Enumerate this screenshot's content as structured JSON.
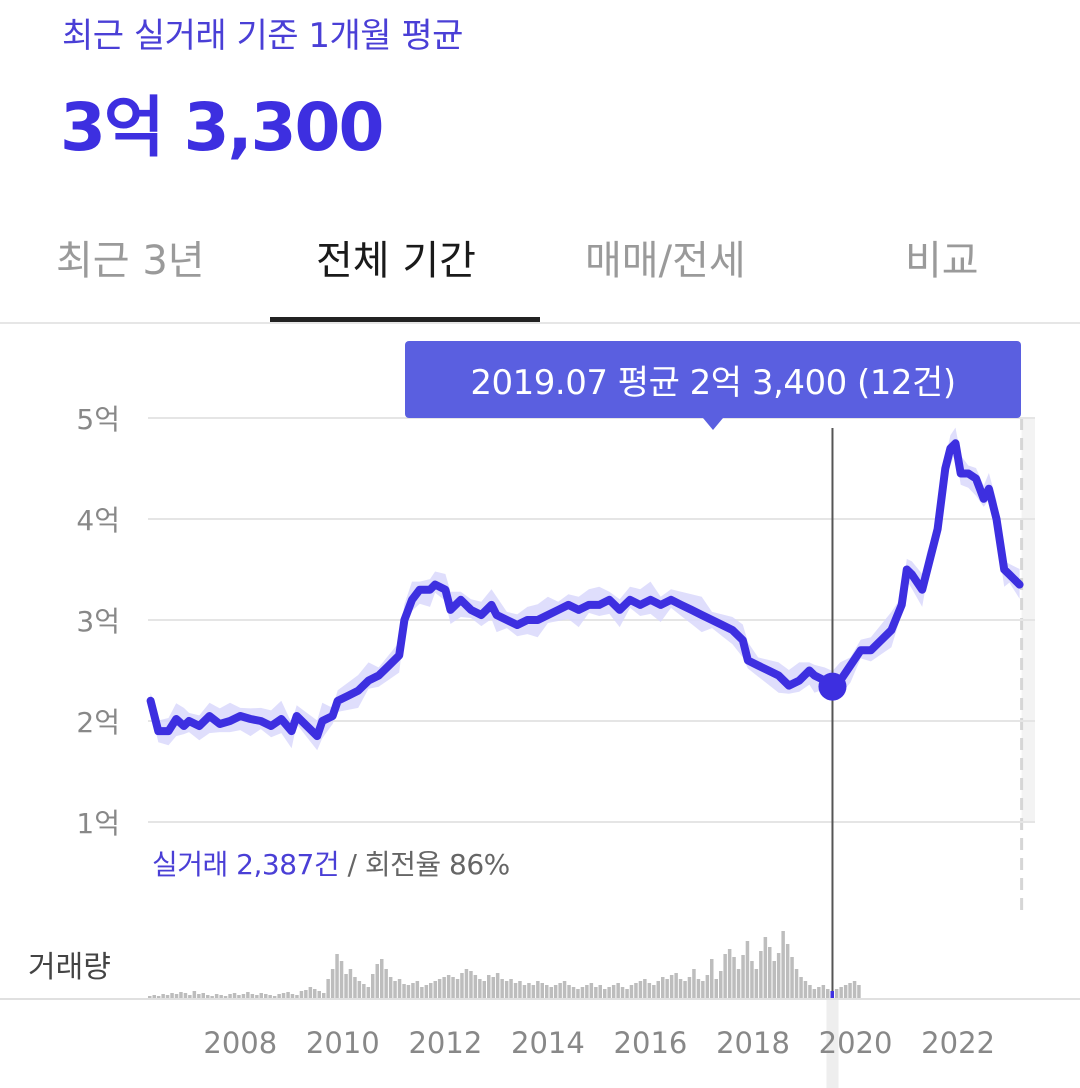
{
  "header": {
    "subtitle": "최근 실거래 기준 1개월 평균",
    "price": "3억 3,300"
  },
  "tabs": [
    {
      "label": "최근 3년",
      "active": false
    },
    {
      "label": "전체 기간",
      "active": true
    },
    {
      "label": "매매/전세",
      "active": false
    },
    {
      "label": "비교",
      "active": false
    }
  ],
  "tooltip": {
    "text": "2019.07 평균 2억 3,400 (12건)"
  },
  "stats": {
    "transactions": "실거래 2,387건",
    "separator": " / ",
    "turnover": "회전율 86%"
  },
  "volume_label": "거래량",
  "colors": {
    "accent": "#3d2fe0",
    "band": "#d9d8fb",
    "tooltip": "#5a5fe0",
    "volume": "#bdbdbd"
  },
  "chart_data": {
    "type": "line",
    "ylabels": [
      "5억",
      "4억",
      "3억",
      "2억",
      "1억"
    ],
    "ylim": [
      1,
      5
    ],
    "xlabels": [
      "2008",
      "2010",
      "2012",
      "2014",
      "2016",
      "2018",
      "2020",
      "2022"
    ],
    "xlim": [
      2006.2,
      2023.5
    ],
    "selected": {
      "x": 2019.55,
      "y": 2.34
    },
    "series": [
      {
        "points": [
          [
            2006.25,
            2.2
          ],
          [
            2006.4,
            1.9
          ],
          [
            2006.6,
            1.9
          ],
          [
            2006.75,
            2.02
          ],
          [
            2006.9,
            1.95
          ],
          [
            2007.0,
            2.0
          ],
          [
            2007.2,
            1.95
          ],
          [
            2007.4,
            2.05
          ],
          [
            2007.6,
            1.97
          ],
          [
            2007.8,
            2.0
          ],
          [
            2008.0,
            2.05
          ],
          [
            2008.2,
            2.02
          ],
          [
            2008.4,
            2.0
          ],
          [
            2008.6,
            1.95
          ],
          [
            2008.8,
            2.02
          ],
          [
            2009.0,
            1.9
          ],
          [
            2009.1,
            2.05
          ],
          [
            2009.3,
            1.95
          ],
          [
            2009.5,
            1.85
          ],
          [
            2009.6,
            2.0
          ],
          [
            2009.8,
            2.05
          ],
          [
            2009.9,
            2.2
          ],
          [
            2010.1,
            2.25
          ],
          [
            2010.3,
            2.3
          ],
          [
            2010.5,
            2.4
          ],
          [
            2010.7,
            2.45
          ],
          [
            2010.9,
            2.55
          ],
          [
            2011.1,
            2.65
          ],
          [
            2011.2,
            3.0
          ],
          [
            2011.35,
            3.2
          ],
          [
            2011.5,
            3.3
          ],
          [
            2011.7,
            3.3
          ],
          [
            2011.8,
            3.35
          ],
          [
            2012.0,
            3.3
          ],
          [
            2012.1,
            3.1
          ],
          [
            2012.3,
            3.2
          ],
          [
            2012.5,
            3.1
          ],
          [
            2012.7,
            3.05
          ],
          [
            2012.9,
            3.15
          ],
          [
            2013.0,
            3.05
          ],
          [
            2013.2,
            3.0
          ],
          [
            2013.4,
            2.95
          ],
          [
            2013.6,
            3.0
          ],
          [
            2013.8,
            3.0
          ],
          [
            2014.0,
            3.05
          ],
          [
            2014.2,
            3.1
          ],
          [
            2014.4,
            3.15
          ],
          [
            2014.6,
            3.1
          ],
          [
            2014.8,
            3.15
          ],
          [
            2015.0,
            3.15
          ],
          [
            2015.2,
            3.2
          ],
          [
            2015.4,
            3.1
          ],
          [
            2015.6,
            3.2
          ],
          [
            2015.8,
            3.15
          ],
          [
            2016.0,
            3.2
          ],
          [
            2016.2,
            3.15
          ],
          [
            2016.4,
            3.2
          ],
          [
            2016.6,
            3.15
          ],
          [
            2016.8,
            3.1
          ],
          [
            2017.0,
            3.05
          ],
          [
            2017.2,
            3.0
          ],
          [
            2017.4,
            2.95
          ],
          [
            2017.6,
            2.9
          ],
          [
            2017.8,
            2.8
          ],
          [
            2017.9,
            2.6
          ],
          [
            2018.1,
            2.55
          ],
          [
            2018.3,
            2.5
          ],
          [
            2018.5,
            2.45
          ],
          [
            2018.7,
            2.35
          ],
          [
            2018.9,
            2.4
          ],
          [
            2019.1,
            2.5
          ],
          [
            2019.2,
            2.45
          ],
          [
            2019.4,
            2.4
          ],
          [
            2019.55,
            2.34
          ],
          [
            2019.7,
            2.4
          ],
          [
            2019.9,
            2.55
          ],
          [
            2020.1,
            2.7
          ],
          [
            2020.3,
            2.7
          ],
          [
            2020.5,
            2.8
          ],
          [
            2020.7,
            2.9
          ],
          [
            2020.9,
            3.15
          ],
          [
            2021.0,
            3.5
          ],
          [
            2021.1,
            3.45
          ],
          [
            2021.3,
            3.3
          ],
          [
            2021.4,
            3.5
          ],
          [
            2021.6,
            3.9
          ],
          [
            2021.75,
            4.5
          ],
          [
            2021.85,
            4.7
          ],
          [
            2021.95,
            4.75
          ],
          [
            2022.05,
            4.45
          ],
          [
            2022.2,
            4.45
          ],
          [
            2022.35,
            4.4
          ],
          [
            2022.5,
            4.2
          ],
          [
            2022.6,
            4.3
          ],
          [
            2022.75,
            4.0
          ],
          [
            2022.9,
            3.5
          ],
          [
            2023.0,
            3.45
          ],
          [
            2023.1,
            3.4
          ],
          [
            2023.2,
            3.35
          ]
        ]
      }
    ],
    "volume": {
      "x0": 2006.2,
      "step": 0.087,
      "values": [
        3,
        4,
        3,
        5,
        4,
        6,
        5,
        7,
        6,
        4,
        8,
        5,
        6,
        4,
        3,
        5,
        4,
        3,
        5,
        6,
        4,
        5,
        7,
        5,
        4,
        6,
        5,
        4,
        3,
        5,
        6,
        7,
        5,
        4,
        8,
        9,
        12,
        10,
        8,
        6,
        20,
        30,
        45,
        38,
        25,
        30,
        22,
        18,
        15,
        12,
        25,
        35,
        40,
        30,
        22,
        18,
        20,
        15,
        14,
        16,
        18,
        12,
        14,
        16,
        18,
        20,
        22,
        24,
        22,
        20,
        26,
        30,
        28,
        24,
        20,
        18,
        24,
        22,
        26,
        20,
        18,
        20,
        16,
        18,
        14,
        16,
        14,
        18,
        16,
        14,
        12,
        14,
        16,
        18,
        14,
        12,
        10,
        12,
        14,
        16,
        12,
        14,
        10,
        12,
        14,
        16,
        12,
        10,
        14,
        16,
        18,
        20,
        16,
        14,
        18,
        22,
        20,
        24,
        26,
        20,
        18,
        22,
        30,
        20,
        18,
        24,
        40,
        20,
        28,
        45,
        50,
        42,
        30,
        44,
        58,
        38,
        30,
        48,
        62,
        52,
        38,
        46,
        68,
        55,
        42,
        30,
        22,
        18,
        14,
        10,
        12,
        14,
        10,
        8,
        10,
        12,
        14,
        16,
        18,
        14
      ]
    }
  }
}
